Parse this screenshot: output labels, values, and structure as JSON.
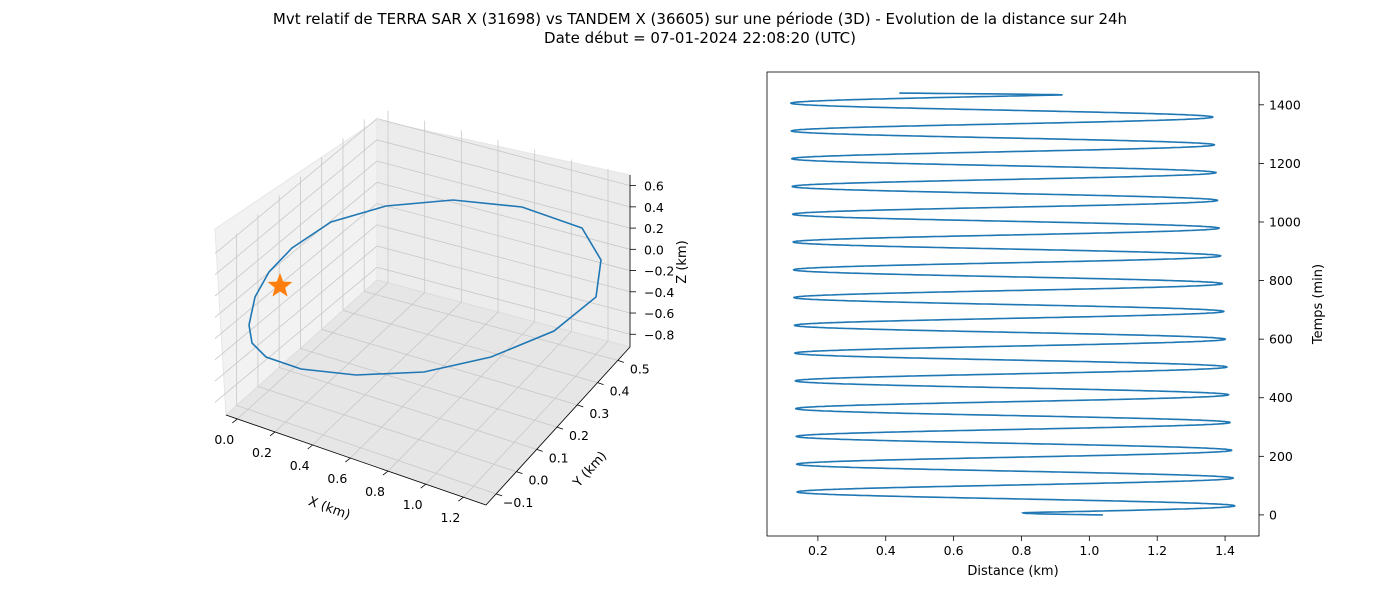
{
  "figure": {
    "title_line1": "Mvt relatif de TERRA SAR X (31698) vs TANDEM X (36605) sur une période (3D) - Evolution de la distance sur 24h",
    "title_line2": "Date début = 07-01-2024 22:08:20 (UTC)"
  },
  "chart_data": [
    {
      "type": "line",
      "projection": "3d",
      "xlabel": "X (km)",
      "ylabel": "Y (km)",
      "zlabel": "Z (km)",
      "xticks": [
        "0.0",
        "0.2",
        "0.4",
        "0.6",
        "0.8",
        "1.0",
        "1.2"
      ],
      "yticks": [
        "−0.1",
        "0.0",
        "0.1",
        "0.2",
        "0.3",
        "0.4",
        "0.5"
      ],
      "zticks": [
        "0.6",
        "0.4",
        "0.2",
        "0.0",
        "−0.2",
        "−0.4",
        "−0.6",
        "−0.8"
      ],
      "grid": true,
      "series": [
        {
          "style": "line",
          "color": "#1f77b4",
          "description_points_xyz_km": [
            [
              0.1,
              0.05,
              -0.45
            ],
            [
              0.2,
              0.2,
              -0.65
            ],
            [
              0.45,
              0.35,
              -0.8
            ],
            [
              0.8,
              0.4,
              -0.75
            ],
            [
              1.1,
              0.35,
              -0.45
            ],
            [
              1.25,
              0.25,
              0.0
            ],
            [
              1.15,
              0.1,
              0.4
            ],
            [
              0.85,
              -0.05,
              0.6
            ],
            [
              0.45,
              -0.1,
              0.55
            ],
            [
              0.15,
              -0.08,
              0.25
            ],
            [
              0.02,
              -0.02,
              -0.15
            ],
            [
              0.1,
              0.05,
              -0.45
            ]
          ]
        },
        {
          "style": "marker",
          "marker": "star",
          "color": "#ff7f0e",
          "points_xyz_km": [
            [
              0.0,
              0.0,
              0.0
            ]
          ]
        }
      ]
    },
    {
      "type": "line",
      "xlabel": "Distance (km)",
      "ylabel": "Temps (min)",
      "xticks": [
        0.2,
        0.4,
        0.6,
        0.8,
        1.0,
        1.2,
        1.4
      ],
      "yticks": [
        0,
        200,
        400,
        600,
        800,
        1000,
        1200,
        1400
      ],
      "xlim": [
        0.05,
        1.5
      ],
      "ylim": [
        -72,
        1512
      ],
      "grid": false,
      "y_axis_position": "right",
      "series": [
        {
          "color": "#1f77b4",
          "start_distance": 1.04,
          "end_distance": 0.44,
          "start_time": 0,
          "end_time": 1440,
          "period_min": 94.8,
          "phase_min": 31,
          "max_distance_start": 1.43,
          "max_distance_end": 1.36,
          "min_distance_start": 0.14,
          "min_distance_end": 0.12
        }
      ]
    }
  ]
}
